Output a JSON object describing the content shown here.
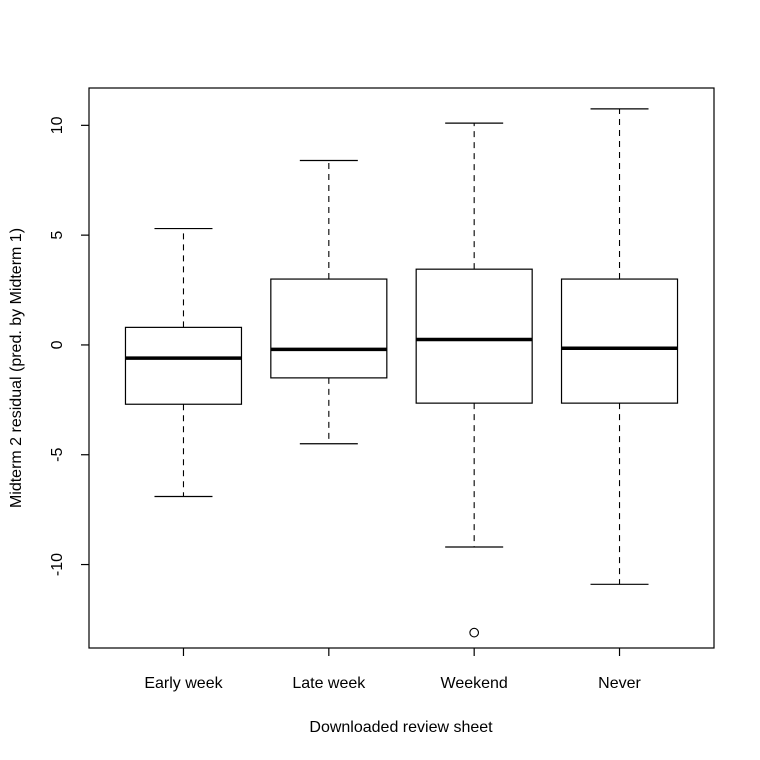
{
  "chart_data": {
    "type": "boxplot",
    "title": "",
    "xlabel": "Downloaded review sheet",
    "ylabel": "Midterm 2 residual (pred. by Midterm 1)",
    "ylim": [
      -13.8,
      11.7
    ],
    "yticks": [
      -10,
      -5,
      0,
      5,
      10
    ],
    "ytick_labels": [
      "-10",
      "-5",
      "0",
      "5",
      "10"
    ],
    "categories": [
      "Early week",
      "Late week",
      "Weekend",
      "Never"
    ],
    "boxes": [
      {
        "name": "Early week",
        "whisker_low": -6.9,
        "q1": -2.7,
        "median": -0.6,
        "q3": 0.8,
        "whisker_high": 5.3,
        "outliers": []
      },
      {
        "name": "Late week",
        "whisker_low": -4.5,
        "q1": -1.5,
        "median": -0.2,
        "q3": 3.0,
        "whisker_high": 8.4,
        "outliers": []
      },
      {
        "name": "Weekend",
        "whisker_low": -9.2,
        "q1": -2.65,
        "median": 0.25,
        "q3": 3.45,
        "whisker_high": 10.1,
        "outliers": [
          -13.1
        ]
      },
      {
        "name": "Never",
        "whisker_low": -10.9,
        "q1": -2.65,
        "median": -0.15,
        "q3": 3.0,
        "whisker_high": 10.75,
        "outliers": []
      }
    ]
  }
}
